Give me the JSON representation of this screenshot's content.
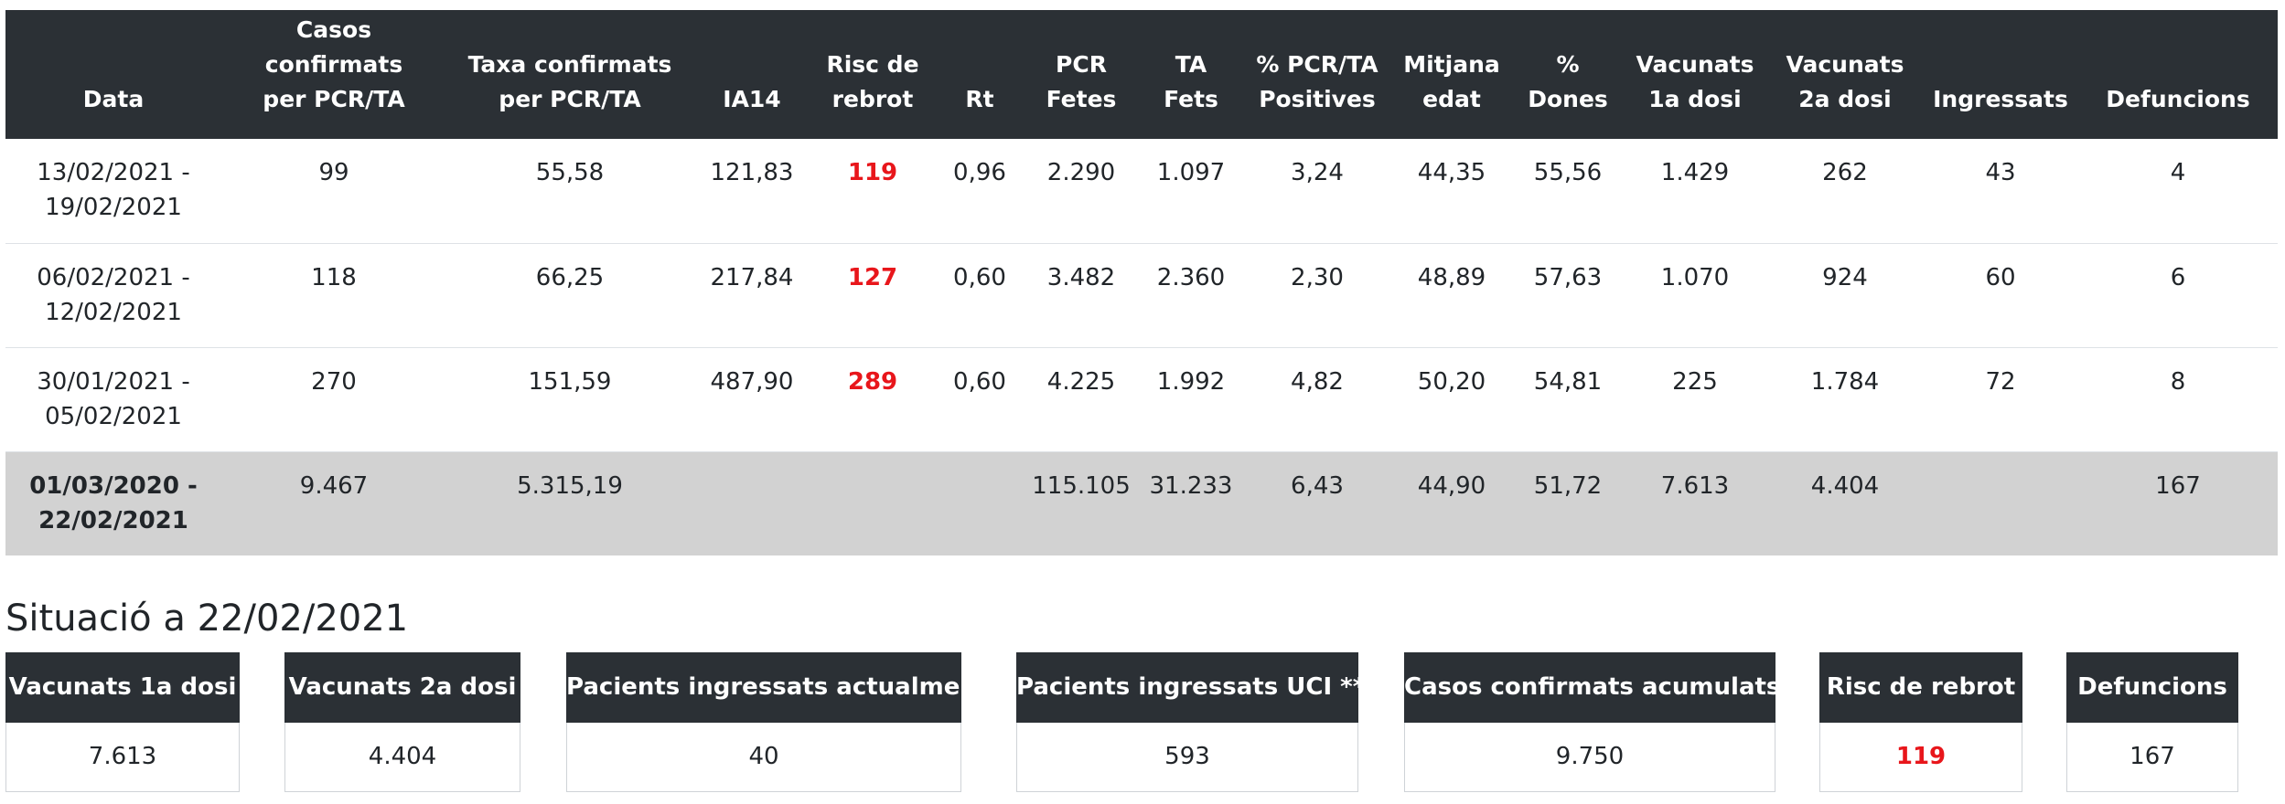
{
  "table": {
    "headers": [
      [
        "Data"
      ],
      [
        "Casos confirmats",
        "per PCR/TA"
      ],
      [
        "Taxa confirmats",
        "per PCR/TA"
      ],
      [
        "IA14"
      ],
      [
        "Risc de",
        "rebrot"
      ],
      [
        "Rt"
      ],
      [
        "PCR",
        "Fetes"
      ],
      [
        "TA",
        "Fets"
      ],
      [
        "% PCR/TA",
        "Positives"
      ],
      [
        "Mitjana",
        "edat"
      ],
      [
        "%",
        "Dones"
      ],
      [
        "Vacunats",
        "1a dosi"
      ],
      [
        "Vacunats",
        "2a dosi"
      ],
      [
        "Ingressats"
      ],
      [
        "Defuncions"
      ]
    ],
    "rows": [
      {
        "date": [
          "13/02/2021 -",
          "19/02/2021"
        ],
        "cells": [
          "99",
          "55,58",
          "121,83",
          "119",
          "0,96",
          "2.290",
          "1.097",
          "3,24",
          "44,35",
          "55,56",
          "1.429",
          "262",
          "43",
          "4"
        ]
      },
      {
        "date": [
          "06/02/2021 -",
          "12/02/2021"
        ],
        "cells": [
          "118",
          "66,25",
          "217,84",
          "127",
          "0,60",
          "3.482",
          "2.360",
          "2,30",
          "48,89",
          "57,63",
          "1.070",
          "924",
          "60",
          "6"
        ]
      },
      {
        "date": [
          "30/01/2021 -",
          "05/02/2021"
        ],
        "cells": [
          "270",
          "151,59",
          "487,90",
          "289",
          "0,60",
          "4.225",
          "1.992",
          "4,82",
          "50,20",
          "54,81",
          "225",
          "1.784",
          "72",
          "8"
        ]
      }
    ],
    "total": {
      "date": [
        "01/03/2020 -",
        "22/02/2021"
      ],
      "cells": [
        "9.467",
        "5.315,19",
        "",
        "",
        "",
        "115.105",
        "31.233",
        "6,43",
        "44,90",
        "51,72",
        "7.613",
        "4.404",
        "",
        "167"
      ]
    }
  },
  "situation": {
    "title": "Situació a 22/02/2021",
    "cards": [
      {
        "label": "Vacunats 1a dosi",
        "value": "7.613"
      },
      {
        "label": "Vacunats 2a dosi",
        "value": "4.404"
      },
      {
        "label": "Pacients ingressats actualment",
        "value": "40"
      },
      {
        "label": "Pacients ingressats UCI **",
        "value": "593"
      },
      {
        "label": "Casos confirmats acumulats",
        "value": "9.750"
      },
      {
        "label": "Risc de rebrot",
        "value": "119"
      },
      {
        "label": "Defuncions",
        "value": "167"
      }
    ]
  },
  "colors": {
    "header_bg": "#2b3035",
    "risk": "#e8161b",
    "total_bg": "#d2d2d2"
  }
}
